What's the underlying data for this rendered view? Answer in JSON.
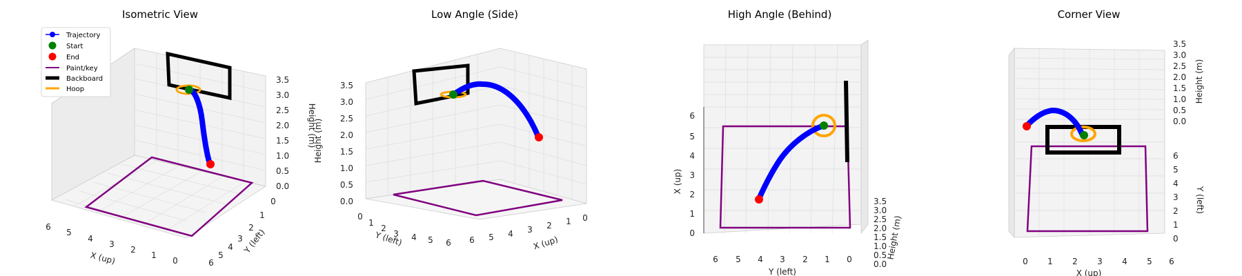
{
  "chart_data": {
    "type": "scatter",
    "legend": {
      "placement": "top-left of first panel",
      "entries": [
        {
          "label": "Trajectory",
          "color": "#0000ff",
          "marker": "line-dot"
        },
        {
          "label": "Start",
          "color": "#008000",
          "marker": "dot"
        },
        {
          "label": "End",
          "color": "#ff0000",
          "marker": "dot"
        },
        {
          "label": "Paint/key",
          "color": "#800080",
          "marker": "line"
        },
        {
          "label": "Backboard",
          "color": "#000000",
          "marker": "thick-line"
        },
        {
          "label": "Hoop",
          "color": "#ffa500",
          "marker": "line"
        }
      ]
    },
    "series_summary": {
      "trajectory_start_xyz": [
        1.0,
        3.0,
        3.05
      ],
      "trajectory_end_xyz": [
        4.0,
        2.0,
        0.5
      ],
      "trajectory_peak_height": 3.5,
      "paint_rect_xy": [
        [
          0,
          1
        ],
        [
          5.8,
          1
        ],
        [
          5.8,
          5.6
        ],
        [
          0,
          5.6
        ]
      ],
      "hoop_center_xyz": [
        1.0,
        3.0,
        3.05
      ],
      "backboard_x_range": [
        0.2,
        1.2
      ],
      "backboard_height_range": [
        2.9,
        3.9
      ]
    },
    "panels": [
      {
        "title": "Isometric View",
        "xlabel": "X (up)",
        "ylabel": "Y (left)",
        "zlabel": "Height (m)",
        "x_ticks": [
          "6",
          "5",
          "4",
          "3",
          "2",
          "1",
          "0"
        ],
        "y_ticks": [
          "0",
          "1",
          "2",
          "3",
          "4",
          "5",
          "6"
        ],
        "z_ticks": [
          "3.5",
          "3.0",
          "2.5",
          "2.0",
          "1.5",
          "1.0",
          "0.5",
          "0.0"
        ],
        "xlim": [
          0,
          6
        ],
        "ylim": [
          0,
          6
        ],
        "zlim": [
          0,
          3.5
        ],
        "grid": true
      },
      {
        "title": "Low Angle (Side)",
        "xlabel": "X (up)",
        "ylabel": "Y (left)",
        "zlabel": "Height (m)",
        "x_ticks": [
          "6",
          "5",
          "4",
          "3",
          "2",
          "1",
          "0"
        ],
        "y_ticks": [
          "0",
          "1",
          "2",
          "3",
          "4",
          "5",
          "6"
        ],
        "z_ticks": [
          "3.5",
          "3.0",
          "2.5",
          "2.0",
          "1.5",
          "1.0",
          "0.5",
          "0.0"
        ],
        "xlim": [
          0,
          6
        ],
        "ylim": [
          0,
          6
        ],
        "zlim": [
          0,
          3.5
        ],
        "grid": true
      },
      {
        "title": "High Angle (Behind)",
        "xlabel": "X (up)",
        "ylabel": "Y (left)",
        "zlabel": "Height (m)",
        "x_ticks": [
          "0",
          "1",
          "2",
          "3",
          "4",
          "5",
          "6"
        ],
        "y_ticks": [
          "6",
          "5",
          "4",
          "3",
          "2",
          "1",
          "0"
        ],
        "z_ticks": [
          "3.5",
          "3.0",
          "2.5",
          "2.0",
          "1.5",
          "1.0",
          "0.5",
          "0.0"
        ],
        "xlim": [
          0,
          6
        ],
        "ylim": [
          0,
          6
        ],
        "zlim": [
          0,
          3.5
        ],
        "grid": true
      },
      {
        "title": "Corner View",
        "xlabel": "X (up)",
        "ylabel": "Y (left)",
        "zlabel": "Height (m)",
        "x_ticks": [
          "0",
          "1",
          "2",
          "3",
          "4",
          "5",
          "6"
        ],
        "y_ticks": [
          "6",
          "5",
          "4",
          "3",
          "2",
          "1",
          "0"
        ],
        "z_ticks": [
          "3.5",
          "3.0",
          "2.5",
          "2.0",
          "1.5",
          "1.0",
          "0.5",
          "0.0"
        ],
        "xlim": [
          0,
          6
        ],
        "ylim": [
          0,
          6
        ],
        "zlim": [
          0,
          3.5
        ],
        "grid": true
      }
    ]
  }
}
